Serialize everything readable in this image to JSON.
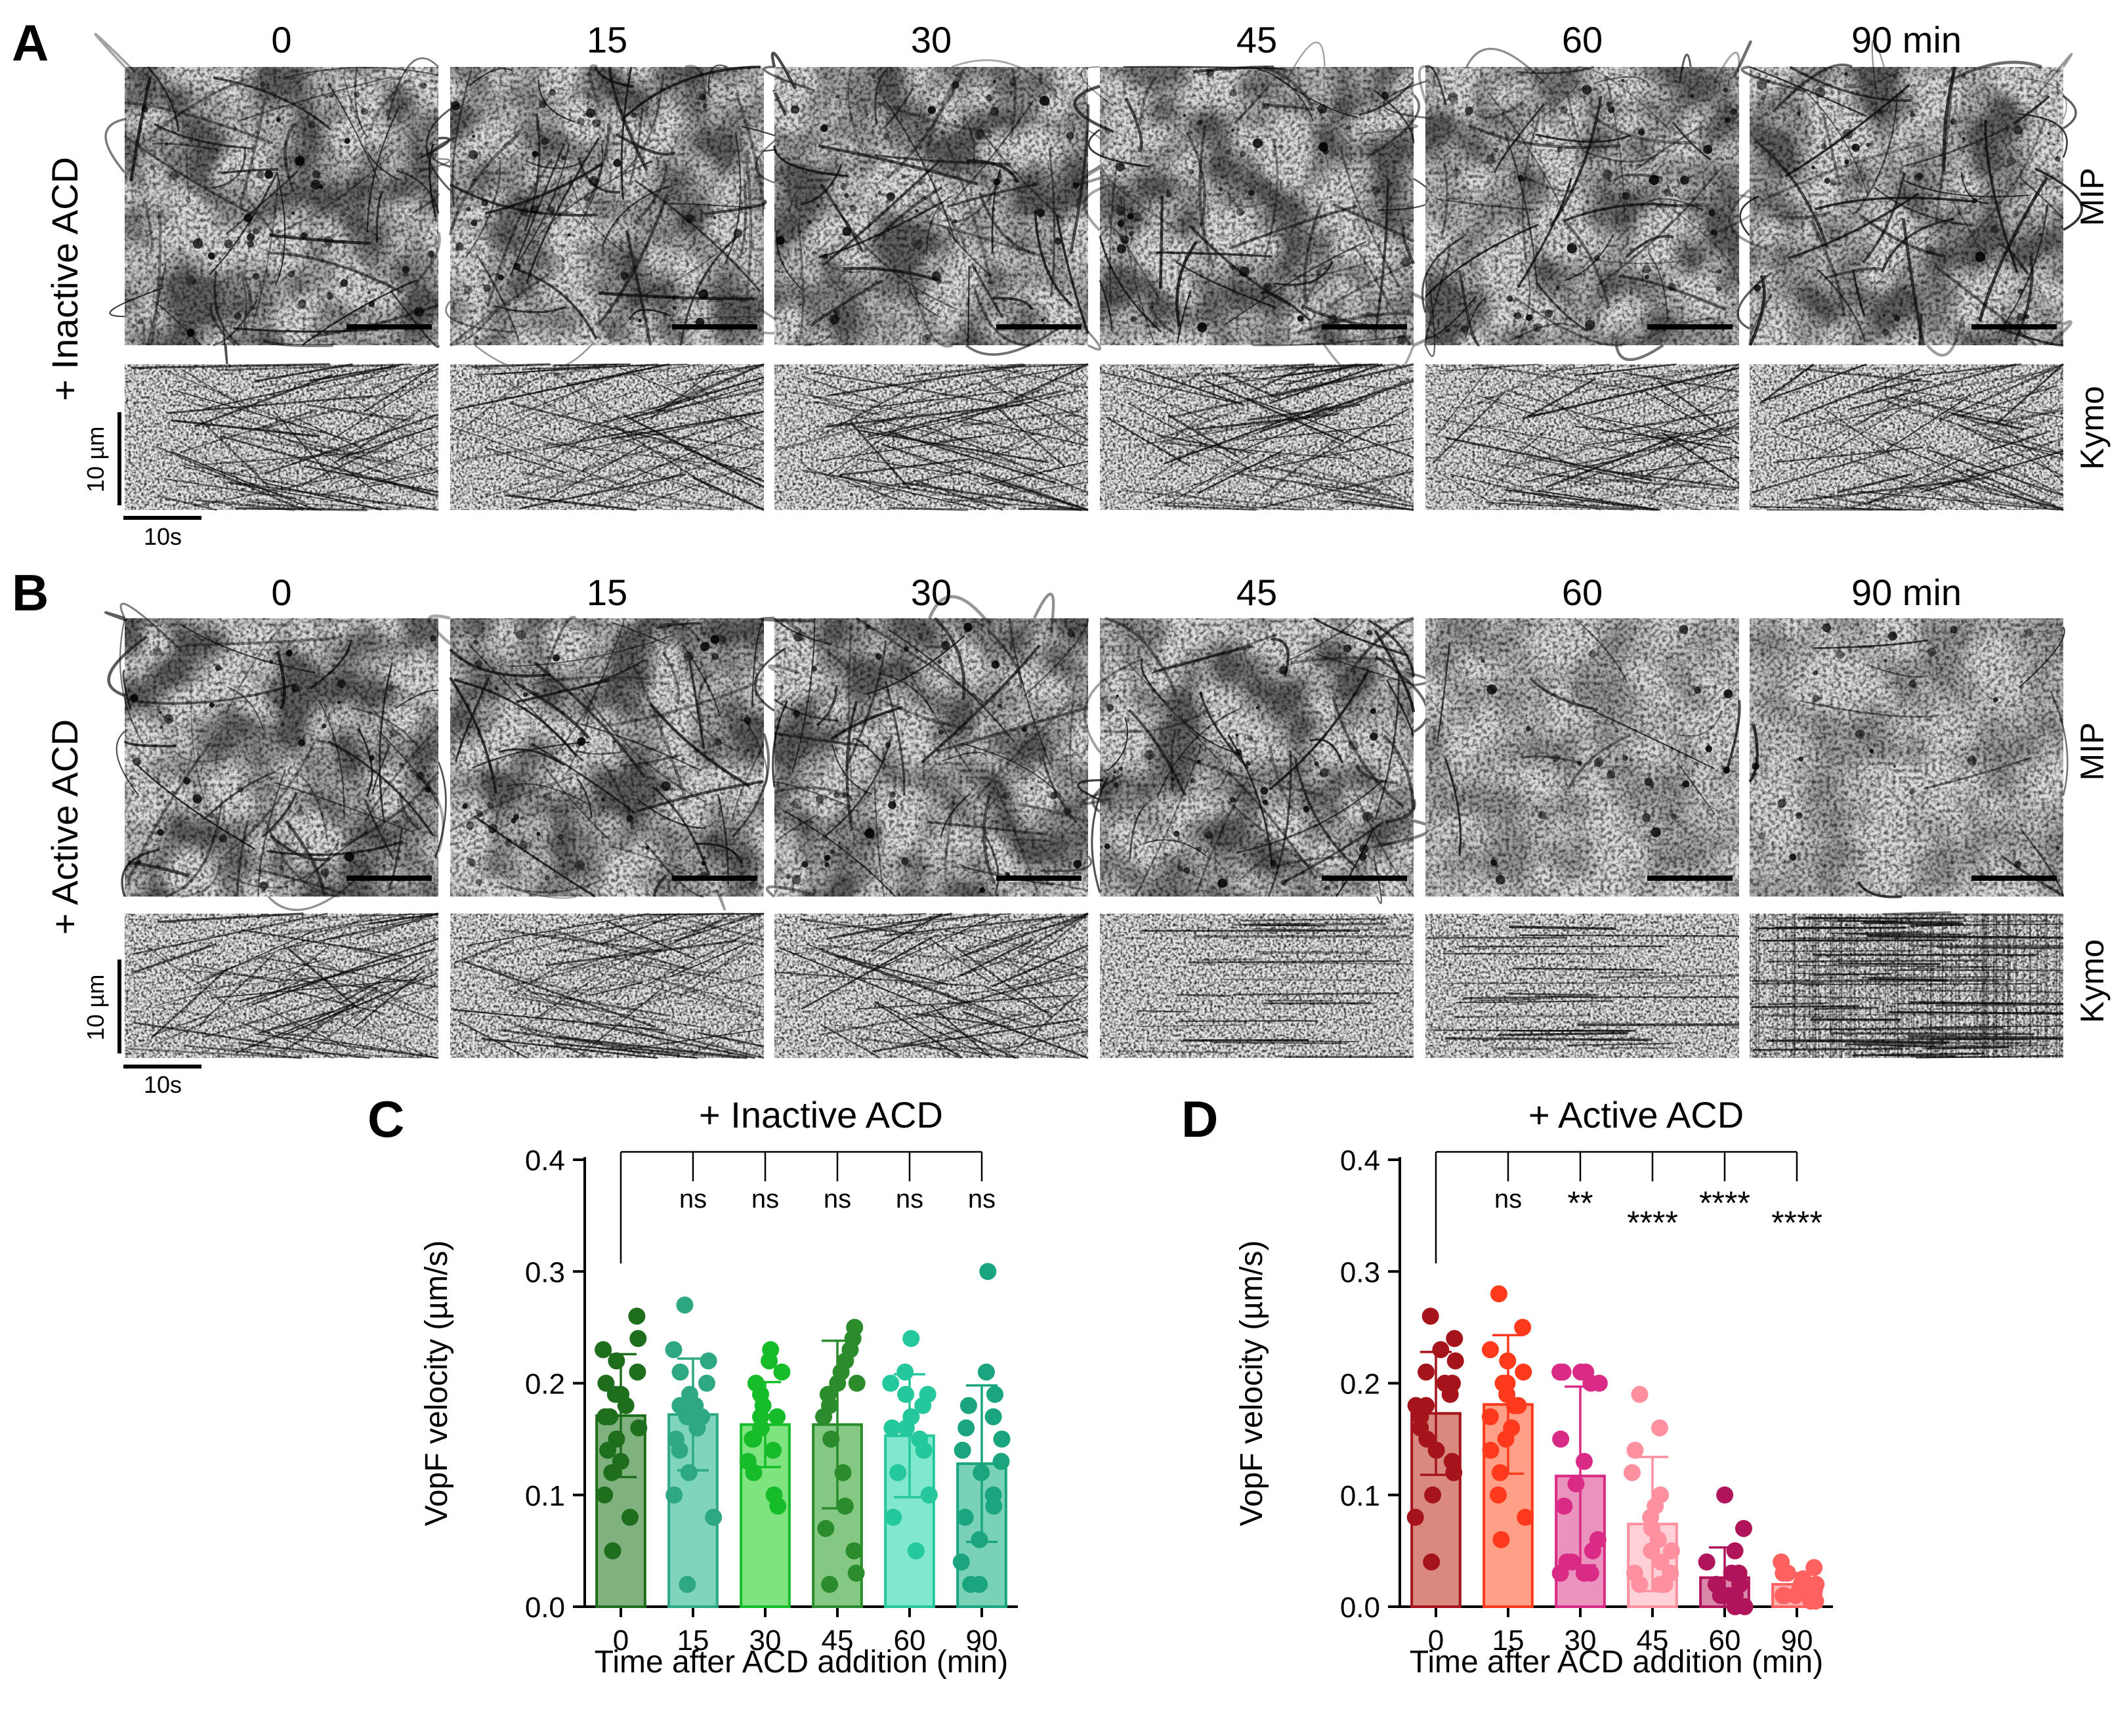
{
  "panels": {
    "A": {
      "letter": "A",
      "condition": "+ Inactive ACD",
      "time_labels": [
        "0",
        "15",
        "30",
        "45",
        "60",
        "90 min"
      ],
      "row_labels": [
        "MIP",
        "Kymo"
      ],
      "kymo_scale_y": "10 µm",
      "kymo_scale_x": "10s"
    },
    "B": {
      "letter": "B",
      "condition": "+ Active ACD",
      "time_labels": [
        "0",
        "15",
        "30",
        "45",
        "60",
        "90 min"
      ],
      "row_labels": [
        "MIP",
        "Kymo"
      ],
      "kymo_scale_y": "10 µm",
      "kymo_scale_x": "10s"
    }
  },
  "chart_data": [
    {
      "panel": "C",
      "type": "bar",
      "title": "+ Inactive ACD",
      "xlabel": "Time after ACD addition (min)",
      "ylabel": "VopF velocity (µm/s)",
      "ylim": [
        0,
        0.4
      ],
      "yticks": [
        "0.0",
        "0.1",
        "0.2",
        "0.3",
        "0.4"
      ],
      "categories": [
        "0",
        "15",
        "30",
        "45",
        "60",
        "90"
      ],
      "values": [
        0.171,
        0.172,
        0.163,
        0.163,
        0.153,
        0.128
      ],
      "sd": [
        0.055,
        0.05,
        0.038,
        0.075,
        0.055,
        0.07
      ],
      "significance": [
        "ns",
        "ns",
        "ns",
        "ns",
        "ns"
      ],
      "colors": [
        "#1e6e1e",
        "#2ea882",
        "#16bc2a",
        "#2a8c2a",
        "#25c79c",
        "#1aa57e"
      ],
      "bar_fills": [
        "#7fb27f",
        "#7ed4bc",
        "#7fe47f",
        "#84c884",
        "#80e8cc",
        "#79d2b8"
      ],
      "points": [
        [
          0.26,
          0.24,
          0.23,
          0.22,
          0.21,
          0.2,
          0.19,
          0.19,
          0.18,
          0.17,
          0.17,
          0.16,
          0.15,
          0.14,
          0.13,
          0.12,
          0.1,
          0.08,
          0.05
        ],
        [
          0.27,
          0.23,
          0.22,
          0.21,
          0.2,
          0.19,
          0.18,
          0.18,
          0.17,
          0.17,
          0.16,
          0.15,
          0.14,
          0.12,
          0.1,
          0.08,
          0.02
        ],
        [
          0.23,
          0.22,
          0.21,
          0.2,
          0.19,
          0.18,
          0.17,
          0.17,
          0.16,
          0.16,
          0.15,
          0.15,
          0.14,
          0.13,
          0.12,
          0.1,
          0.09
        ],
        [
          0.25,
          0.24,
          0.23,
          0.22,
          0.21,
          0.2,
          0.2,
          0.19,
          0.18,
          0.17,
          0.15,
          0.12,
          0.09,
          0.07,
          0.05,
          0.03,
          0.02
        ],
        [
          0.24,
          0.21,
          0.2,
          0.19,
          0.19,
          0.18,
          0.17,
          0.16,
          0.16,
          0.15,
          0.14,
          0.12,
          0.1,
          0.08,
          0.05
        ],
        [
          0.3,
          0.21,
          0.19,
          0.18,
          0.17,
          0.16,
          0.15,
          0.14,
          0.13,
          0.12,
          0.1,
          0.09,
          0.08,
          0.06,
          0.04,
          0.02,
          0.02
        ]
      ]
    },
    {
      "panel": "D",
      "type": "bar",
      "title": "+ Active ACD",
      "xlabel": "Time after ACD addition (min)",
      "ylabel": "VopF velocity (µm/s)",
      "ylim": [
        0,
        0.4
      ],
      "yticks": [
        "0.0",
        "0.1",
        "0.2",
        "0.3",
        "0.4"
      ],
      "categories": [
        "0",
        "15",
        "30",
        "45",
        "60",
        "90"
      ],
      "values": [
        0.173,
        0.181,
        0.117,
        0.074,
        0.026,
        0.02
      ],
      "sd": [
        0.055,
        0.062,
        0.08,
        0.06,
        0.027,
        0.01
      ],
      "significance": [
        "ns",
        "**",
        "****",
        "****",
        "****"
      ],
      "colors": [
        "#a5141a",
        "#ff3a1c",
        "#d92a86",
        "#ff90a0",
        "#b0145a",
        "#ff6060"
      ],
      "bar_fills": [
        "#d98a80",
        "#ff9f88",
        "#ea93be",
        "#ffd0d6",
        "#d988a8",
        "#ffb4b4"
      ],
      "points": [
        [
          0.26,
          0.24,
          0.23,
          0.22,
          0.21,
          0.2,
          0.2,
          0.19,
          0.18,
          0.18,
          0.17,
          0.16,
          0.15,
          0.14,
          0.13,
          0.12,
          0.1,
          0.08,
          0.04
        ],
        [
          0.28,
          0.25,
          0.23,
          0.22,
          0.21,
          0.2,
          0.2,
          0.19,
          0.18,
          0.18,
          0.17,
          0.16,
          0.15,
          0.14,
          0.12,
          0.1,
          0.08,
          0.06
        ],
        [
          0.21,
          0.21,
          0.21,
          0.21,
          0.2,
          0.2,
          0.15,
          0.13,
          0.11,
          0.09,
          0.06,
          0.05,
          0.04,
          0.04,
          0.03,
          0.03,
          0.03
        ],
        [
          0.19,
          0.16,
          0.14,
          0.12,
          0.1,
          0.09,
          0.08,
          0.07,
          0.06,
          0.05,
          0.05,
          0.04,
          0.03,
          0.03,
          0.02,
          0.02,
          0.02
        ],
        [
          0.1,
          0.07,
          0.05,
          0.04,
          0.03,
          0.03,
          0.02,
          0.02,
          0.02,
          0.01,
          0.01,
          0.01,
          0.01,
          0.0,
          0.0
        ],
        [
          0.04,
          0.035,
          0.03,
          0.03,
          0.025,
          0.02,
          0.02,
          0.02,
          0.015,
          0.015,
          0.01,
          0.01,
          0.01,
          0.005,
          0.005
        ]
      ]
    }
  ]
}
